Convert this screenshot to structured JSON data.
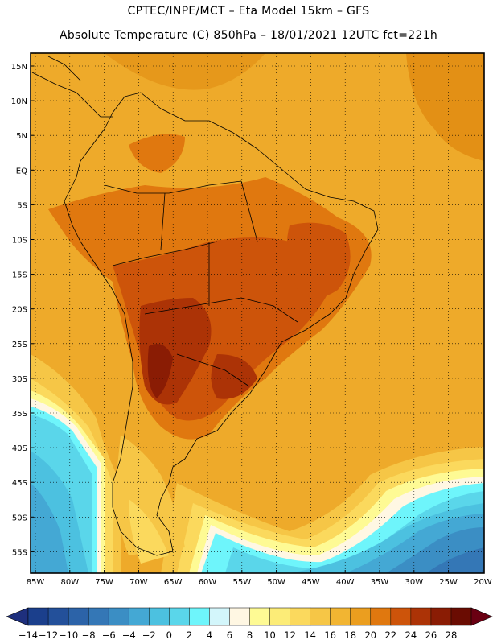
{
  "header": {
    "line1": "CPTEC/INPE/MCT –  Eta Model 15km – GFS",
    "line2": "Absolute Temperature (C) 850hPa – 18/01/2021 12UTC fct=221h"
  },
  "axes": {
    "lat_labels": [
      "15N",
      "10N",
      "5N",
      "EQ",
      "5S",
      "10S",
      "15S",
      "20S",
      "25S",
      "30S",
      "35S",
      "40S",
      "45S",
      "50S",
      "55S"
    ],
    "lon_labels": [
      "85W",
      "80W",
      "75W",
      "70W",
      "65W",
      "60W",
      "55W",
      "50W",
      "45W",
      "40W",
      "35W",
      "30W",
      "25W",
      "20W"
    ]
  },
  "colorbar": {
    "labels": [
      "-14",
      "-12",
      "-10",
      "-8",
      "-6",
      "-4",
      "-2",
      "0",
      "2",
      "4",
      "6",
      "8",
      "10",
      "12",
      "14",
      "16",
      "18",
      "20",
      "22",
      "24",
      "26",
      "28"
    ],
    "colors": [
      "#1b3f8c",
      "#23509a",
      "#2c63a8",
      "#3477b6",
      "#3b8ec4",
      "#44a8d4",
      "#4cc1e0",
      "#5ad6ea",
      "#6ef5fb",
      "#d3f6fb",
      "#fff7e3",
      "#fefa94",
      "#fcec77",
      "#fbd95d",
      "#f6c646",
      "#f2b532",
      "#eb9e1f",
      "#e0780f",
      "#cd540a",
      "#ac3306",
      "#8a1c04",
      "#6a0c02"
    ],
    "left_arrow_color": "#1e2f7d",
    "right_arrow_color": "#6a0012"
  },
  "map": {
    "ocean_color": "#eeaa2a",
    "land_color": "#f0a52a"
  }
}
